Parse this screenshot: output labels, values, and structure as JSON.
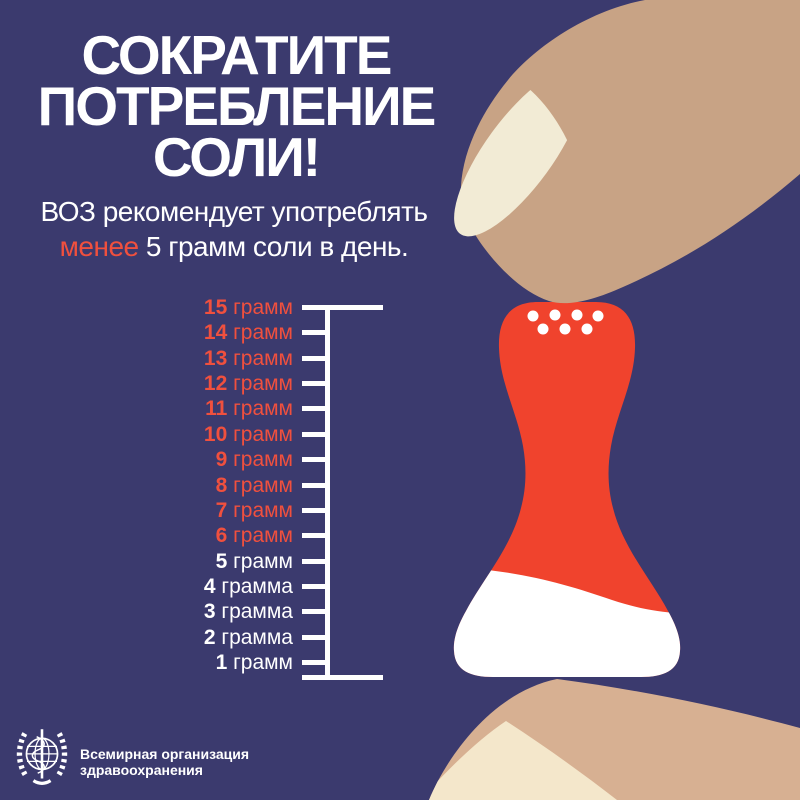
{
  "poster": {
    "title_line1": "СОКРАТИТЕ",
    "title_line2": "ПОТРЕБЛЕНИЕ",
    "title_line3": "СОЛИ!",
    "subtitle_line1": "ВОЗ рекомендует употреблять",
    "subtitle_highlight": "менее",
    "subtitle_line2_rest": " 5 грамм соли в день."
  },
  "scale": {
    "items": [
      {
        "value": "15",
        "unit": "грамм",
        "color": "red"
      },
      {
        "value": "14",
        "unit": "грамм",
        "color": "red"
      },
      {
        "value": "13",
        "unit": "грамм",
        "color": "red"
      },
      {
        "value": "12",
        "unit": "грамм",
        "color": "red"
      },
      {
        "value": "11",
        "unit": "грамм",
        "color": "red"
      },
      {
        "value": "10",
        "unit": "грамм",
        "color": "red"
      },
      {
        "value": "9",
        "unit": "грамм",
        "color": "red"
      },
      {
        "value": "8",
        "unit": "грамм",
        "color": "red"
      },
      {
        "value": "7",
        "unit": "грамм",
        "color": "red"
      },
      {
        "value": "6",
        "unit": "грамм",
        "color": "red"
      },
      {
        "value": "5",
        "unit": "грамм",
        "color": "white"
      },
      {
        "value": "4",
        "unit": "грамма",
        "color": "white"
      },
      {
        "value": "3",
        "unit": "грамма",
        "color": "white"
      },
      {
        "value": "2",
        "unit": "грамма",
        "color": "white"
      },
      {
        "value": "1",
        "unit": "грамм",
        "color": "white"
      }
    ]
  },
  "footer": {
    "org_name_line1": "Всемирная организация",
    "org_name_line2": "здравоохранения",
    "logo_icon": "who-emblem-icon"
  },
  "colors": {
    "background": "#3B3A6E",
    "accent_red_text": "#F0503E",
    "shaker_red": "#F0432D",
    "salt_white": "#FFFFFF",
    "finger_top_tan": "#C8A385",
    "finger_bottom_tan": "#D7B092",
    "nail_cream_top": "#F2EBD5",
    "nail_cream_bottom": "#F4E7CB"
  },
  "illustration": {
    "shaker_icon": "salt-shaker-icon",
    "finger_top_icon": "finger-pressing-icon",
    "finger_bottom_icon": "finger-supporting-icon"
  }
}
